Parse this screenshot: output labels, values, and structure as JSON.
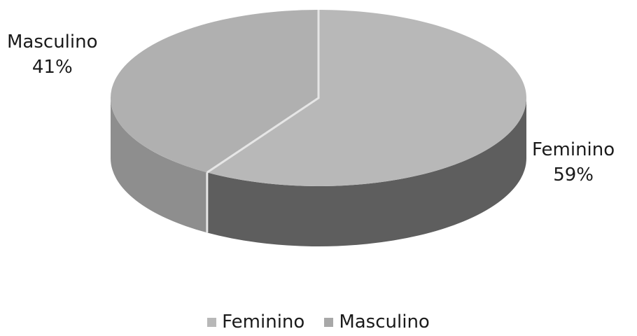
{
  "chart_data": {
    "type": "pie",
    "categories": [
      "Feminino",
      "Masculino"
    ],
    "values": [
      59,
      41
    ],
    "labels": [
      {
        "name": "Feminino",
        "percent": "59%"
      },
      {
        "name": "Masculino",
        "percent": "41%"
      }
    ],
    "title": "",
    "legend_position": "bottom",
    "style": "3d",
    "colors": {
      "feminino_top": "#b8b8b8",
      "feminino_side": "#5e5e5e",
      "masculino_top": "#b0b0b0",
      "masculino_side": "#8e8e8e",
      "separator": "#e6e6e6"
    }
  },
  "legend": {
    "items": [
      {
        "label": "Feminino",
        "color": "#b8b8b8"
      },
      {
        "label": "Masculino",
        "color": "#a8a8a8"
      }
    ]
  }
}
